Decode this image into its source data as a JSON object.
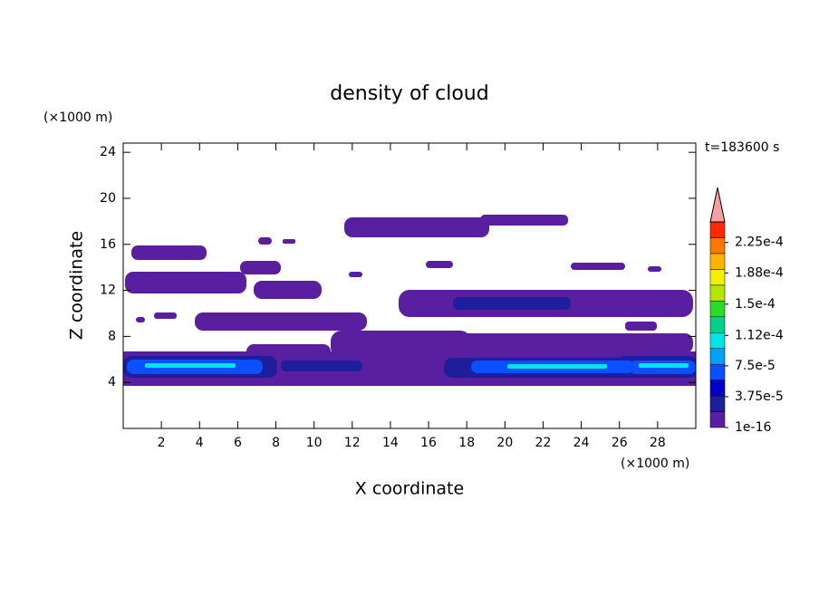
{
  "chart_data": {
    "type": "contour",
    "title": "density of cloud",
    "x_label": "X coordinate",
    "y_label": "Z coordinate",
    "x_unit": "(×1000 m)",
    "y_unit": "(×1000 m)",
    "time_label": "t=183600 s",
    "xlim": [
      0,
      30
    ],
    "ylim": [
      0,
      24.8
    ],
    "xticks": [
      2,
      4,
      6,
      8,
      10,
      12,
      14,
      16,
      18,
      20,
      22,
      24,
      26,
      28
    ],
    "yticks": [
      4,
      8,
      12,
      16,
      20,
      24
    ],
    "colorbar": {
      "clim": [
        0,
        0.00025
      ],
      "colors": [
        "#5a1ea0",
        "#1e1e9c",
        "#0000c8",
        "#0a50ff",
        "#00a0ff",
        "#00e6e6",
        "#00d28c",
        "#28dc28",
        "#b4e600",
        "#f0f000",
        "#ffb400",
        "#ff7800",
        "#ff2800"
      ],
      "over_color": "#f4a0a0",
      "ticks": [
        {
          "value": 1e-16,
          "label": "1e-16"
        },
        {
          "value": 3.75e-05,
          "label": "3.75e-5"
        },
        {
          "value": 7.5e-05,
          "label": "7.5e-5"
        },
        {
          "value": 0.000112,
          "label": "1.12e-4"
        },
        {
          "value": 0.00015,
          "label": "1.5e-4"
        },
        {
          "value": 0.000188,
          "label": "1.88e-4"
        },
        {
          "value": 0.000225,
          "label": "2.25e-4"
        }
      ]
    }
  }
}
